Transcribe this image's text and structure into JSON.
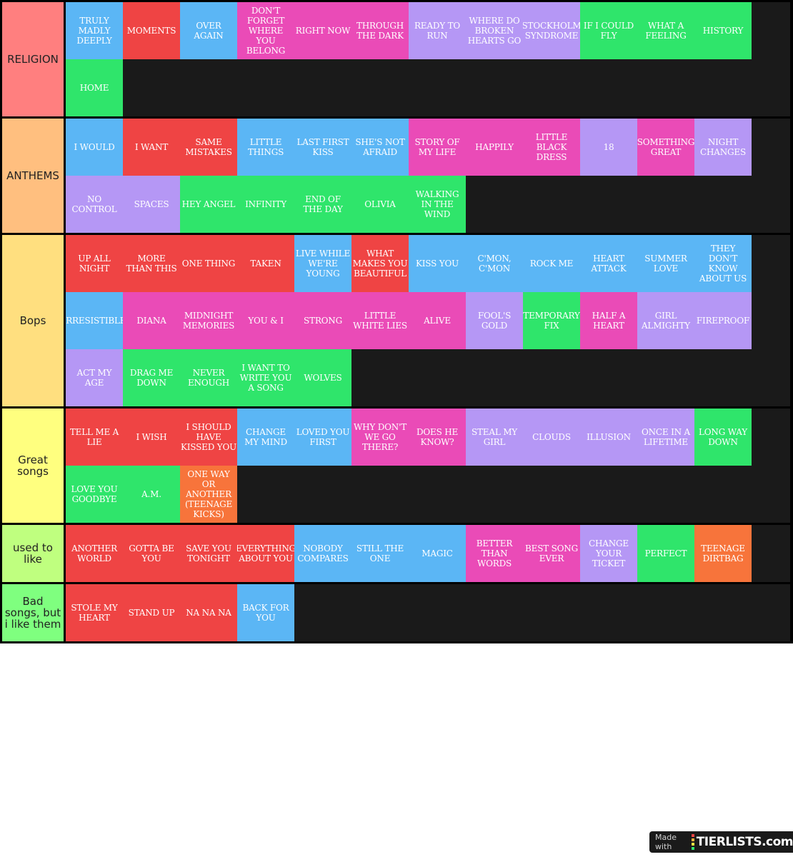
{
  "tiers": [
    {
      "label": "RELIGION",
      "color": "#ff7f7f",
      "items": [
        {
          "text": "TRULY MADLY DEEPLY",
          "color": "blue"
        },
        {
          "text": "MOMENTS",
          "color": "red"
        },
        {
          "text": "OVER AGAIN",
          "color": "blue"
        },
        {
          "text": "DON'T FORGET WHERE YOU BELONG",
          "color": "pink"
        },
        {
          "text": "RIGHT NOW",
          "color": "pink"
        },
        {
          "text": "THROUGH THE DARK",
          "color": "pink"
        },
        {
          "text": "READY TO RUN",
          "color": "purple"
        },
        {
          "text": "WHERE DO BROKEN HEARTS GO",
          "color": "purple"
        },
        {
          "text": "STOCKHOLM SYNDROME",
          "color": "purple"
        },
        {
          "text": "IF I COULD FLY",
          "color": "green"
        },
        {
          "text": "WHAT A FEELING",
          "color": "green"
        },
        {
          "text": "HISTORY",
          "color": "green"
        },
        {
          "text": "HOME",
          "color": "green"
        }
      ]
    },
    {
      "label": "ANTHEMS",
      "color": "#ffbf7f",
      "items": [
        {
          "text": "I WOULD",
          "color": "blue"
        },
        {
          "text": "I WANT",
          "color": "red"
        },
        {
          "text": "SAME MISTAKES",
          "color": "red"
        },
        {
          "text": "LITTLE THINGS",
          "color": "blue"
        },
        {
          "text": "LAST FIRST KISS",
          "color": "blue"
        },
        {
          "text": "SHE'S NOT AFRAID",
          "color": "blue"
        },
        {
          "text": "STORY OF MY LIFE",
          "color": "pink"
        },
        {
          "text": "HAPPILY",
          "color": "pink"
        },
        {
          "text": "LITTLE BLACK DRESS",
          "color": "pink"
        },
        {
          "text": "18",
          "color": "purple"
        },
        {
          "text": "SOMETHING GREAT",
          "color": "pink"
        },
        {
          "text": "NIGHT CHANGES",
          "color": "purple"
        },
        {
          "text": "NO CONTROL",
          "color": "purple"
        },
        {
          "text": "SPACES",
          "color": "purple"
        },
        {
          "text": "HEY ANGEL",
          "color": "green"
        },
        {
          "text": "INFINITY",
          "color": "green"
        },
        {
          "text": "END OF THE DAY",
          "color": "green"
        },
        {
          "text": "OLIVIA",
          "color": "green"
        },
        {
          "text": "WALKING IN THE WIND",
          "color": "green"
        }
      ]
    },
    {
      "label": "Bops",
      "color": "#ffdf7f",
      "items": [
        {
          "text": "UP ALL NIGHT",
          "color": "red"
        },
        {
          "text": "MORE THAN THIS",
          "color": "red"
        },
        {
          "text": "ONE THING",
          "color": "red"
        },
        {
          "text": "TAKEN",
          "color": "red"
        },
        {
          "text": "LIVE WHILE WE'RE YOUNG",
          "color": "blue"
        },
        {
          "text": "WHAT MAKES YOU BEAUTIFUL",
          "color": "red"
        },
        {
          "text": "KISS YOU",
          "color": "blue"
        },
        {
          "text": "C'MON, C'MON",
          "color": "blue"
        },
        {
          "text": "ROCK ME",
          "color": "blue"
        },
        {
          "text": "HEART ATTACK",
          "color": "blue"
        },
        {
          "text": "SUMMER LOVE",
          "color": "blue"
        },
        {
          "text": "THEY DON'T KNOW ABOUT US",
          "color": "blue"
        },
        {
          "text": "IRRESISTIBLE",
          "color": "blue"
        },
        {
          "text": "DIANA",
          "color": "pink"
        },
        {
          "text": "MIDNIGHT MEMORIES",
          "color": "pink"
        },
        {
          "text": "YOU & I",
          "color": "pink"
        },
        {
          "text": "STRONG",
          "color": "pink"
        },
        {
          "text": "LITTLE WHITE LIES",
          "color": "pink"
        },
        {
          "text": "ALIVE",
          "color": "pink"
        },
        {
          "text": "FOOL'S GOLD",
          "color": "purple"
        },
        {
          "text": "TEMPORARY FIX",
          "color": "green"
        },
        {
          "text": "HALF A HEART",
          "color": "pink"
        },
        {
          "text": "GIRL ALMIGHTY",
          "color": "purple"
        },
        {
          "text": "FIREPROOF",
          "color": "purple"
        },
        {
          "text": "ACT MY AGE",
          "color": "purple"
        },
        {
          "text": "DRAG ME DOWN",
          "color": "green"
        },
        {
          "text": "NEVER ENOUGH",
          "color": "green"
        },
        {
          "text": "I WANT TO WRITE YOU A SONG",
          "color": "green"
        },
        {
          "text": "WOLVES",
          "color": "green"
        }
      ]
    },
    {
      "label": "Great songs",
      "color": "#ffff7f",
      "items": [
        {
          "text": "TELL ME A LIE",
          "color": "red"
        },
        {
          "text": "I WISH",
          "color": "red"
        },
        {
          "text": "I SHOULD HAVE KISSED YOU",
          "color": "red"
        },
        {
          "text": "CHANGE MY MIND",
          "color": "blue"
        },
        {
          "text": "LOVED YOU FIRST",
          "color": "blue"
        },
        {
          "text": "WHY DON'T WE GO THERE?",
          "color": "pink"
        },
        {
          "text": "DOES HE KNOW?",
          "color": "pink"
        },
        {
          "text": "STEAL MY GIRL",
          "color": "purple"
        },
        {
          "text": "CLOUDS",
          "color": "purple"
        },
        {
          "text": "ILLUSION",
          "color": "purple"
        },
        {
          "text": "ONCE IN A LIFETIME",
          "color": "purple"
        },
        {
          "text": "LONG WAY DOWN",
          "color": "green"
        },
        {
          "text": "LOVE YOU GOODBYE",
          "color": "green"
        },
        {
          "text": "A.M.",
          "color": "green"
        },
        {
          "text": "ONE WAY OR ANOTHER (TEENAGE KICKS)",
          "color": "orange"
        }
      ]
    },
    {
      "label": "used to like",
      "color": "#bfff7f",
      "items": [
        {
          "text": "ANOTHER WORLD",
          "color": "red"
        },
        {
          "text": "GOTTA BE YOU",
          "color": "red"
        },
        {
          "text": "SAVE YOU TONIGHT",
          "color": "red"
        },
        {
          "text": "EVERYTHING ABOUT YOU",
          "color": "red"
        },
        {
          "text": "NOBODY COMPARES",
          "color": "blue"
        },
        {
          "text": "STILL THE ONE",
          "color": "blue"
        },
        {
          "text": "MAGIC",
          "color": "blue"
        },
        {
          "text": "BETTER THAN WORDS",
          "color": "pink"
        },
        {
          "text": "BEST SONG EVER",
          "color": "pink"
        },
        {
          "text": "CHANGE YOUR TICKET",
          "color": "purple"
        },
        {
          "text": "PERFECT",
          "color": "green"
        },
        {
          "text": "TEENAGE DIRTBAG",
          "color": "orange"
        }
      ]
    },
    {
      "label": "Bad songs, but i like them",
      "color": "#7fff7f",
      "items": [
        {
          "text": "STOLE MY HEART",
          "color": "red"
        },
        {
          "text": "STAND UP",
          "color": "red"
        },
        {
          "text": "NA NA NA",
          "color": "red"
        },
        {
          "text": "BACK FOR YOU",
          "color": "blue"
        }
      ]
    }
  ],
  "badge": {
    "made_with": "Made with",
    "logo": "TIERLISTS.com"
  }
}
